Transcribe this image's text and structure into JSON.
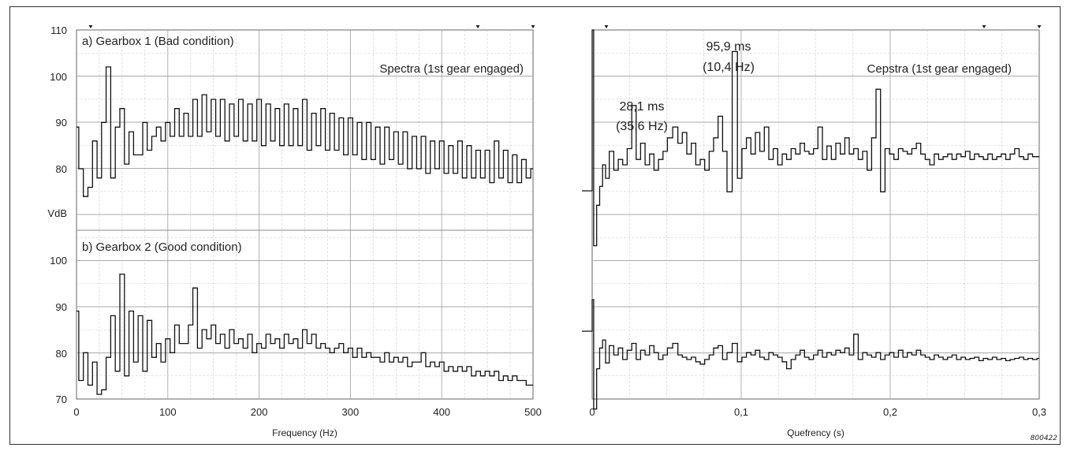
{
  "figure_id": "800422",
  "chart_data": [
    {
      "type": "line",
      "title": "Spectra (1st gear engaged)",
      "xlabel": "Frequency (Hz)",
      "ylabel": "VdB",
      "xlim": [
        0,
        500
      ],
      "x_ticks": [
        "0",
        "100",
        "200",
        "300",
        "400",
        "500"
      ],
      "grid": true,
      "panels": [
        {
          "label": "a) Gearbox 1 (Bad condition)",
          "ylim": [
            70,
            110
          ],
          "y_ticks": [
            "110",
            "100",
            "90",
            "80"
          ],
          "series": [
            {
              "x": [
                0,
                5,
                10,
                15,
                20,
                25,
                30,
                35,
                40,
                45,
                50,
                55,
                60,
                65,
                70,
                75,
                80,
                85,
                90,
                95,
                100,
                105,
                110,
                115,
                120,
                125,
                130,
                135,
                140,
                145,
                150,
                155,
                160,
                165,
                170,
                175,
                180,
                185,
                190,
                195,
                200,
                205,
                210,
                215,
                220,
                225,
                230,
                235,
                240,
                245,
                250,
                255,
                260,
                265,
                270,
                275,
                280,
                285,
                290,
                295,
                300,
                305,
                310,
                315,
                320,
                325,
                330,
                335,
                340,
                345,
                350,
                355,
                360,
                365,
                370,
                375,
                380,
                385,
                390,
                395,
                400,
                405,
                410,
                415,
                420,
                425,
                430,
                435,
                440,
                445,
                450,
                455,
                460,
                465,
                470,
                475,
                480,
                485,
                490,
                495,
                500
              ],
              "values": [
                89,
                80,
                74,
                76,
                86,
                78,
                90,
                102,
                78,
                89,
                93,
                81,
                88,
                83,
                83,
                90,
                84,
                87,
                89,
                86,
                90,
                87,
                93,
                87,
                92,
                87,
                95,
                87,
                96,
                88,
                95,
                87,
                95,
                86,
                94,
                87,
                95,
                86,
                94,
                86,
                95,
                85,
                94,
                86,
                93,
                85,
                94,
                85,
                93,
                85,
                95,
                84,
                92,
                85,
                93,
                84,
                92,
                84,
                91,
                83,
                91,
                83,
                90,
                82,
                90,
                82,
                89,
                81,
                89,
                82,
                88,
                81,
                88,
                80,
                87,
                80,
                87,
                79,
                86,
                80,
                86,
                79,
                85,
                79,
                86,
                78,
                85,
                78,
                84,
                78,
                84,
                77,
                86,
                78,
                84,
                77,
                83,
                77,
                82,
                78,
                80
              ]
            }
          ]
        },
        {
          "label": "b) Gearbox 2 (Good condition)",
          "ylim": [
            70,
            100
          ],
          "y_ticks": [
            "100",
            "90",
            "80",
            "70"
          ],
          "series": [
            {
              "x": [
                0,
                5,
                10,
                15,
                20,
                25,
                30,
                35,
                40,
                45,
                50,
                55,
                60,
                65,
                70,
                75,
                80,
                85,
                90,
                95,
                100,
                105,
                110,
                115,
                120,
                125,
                130,
                135,
                140,
                145,
                150,
                155,
                160,
                165,
                170,
                175,
                180,
                185,
                190,
                195,
                200,
                205,
                210,
                215,
                220,
                225,
                230,
                235,
                240,
                245,
                250,
                255,
                260,
                265,
                270,
                275,
                280,
                285,
                290,
                295,
                300,
                305,
                310,
                315,
                320,
                325,
                330,
                335,
                340,
                345,
                350,
                355,
                360,
                365,
                370,
                375,
                380,
                385,
                390,
                395,
                400,
                405,
                410,
                415,
                420,
                425,
                430,
                435,
                440,
                445,
                450,
                455,
                460,
                465,
                470,
                475,
                480,
                485,
                490,
                495,
                500
              ],
              "values": [
                89,
                74,
                80,
                73,
                78,
                71,
                72,
                79,
                88,
                76,
                97,
                75,
                89,
                78,
                88,
                76,
                87,
                79,
                82,
                78,
                83,
                80,
                86,
                82,
                82,
                86,
                94,
                81,
                85,
                83,
                86,
                82,
                84,
                81,
                85,
                82,
                83,
                81,
                84,
                80,
                82,
                81,
                84,
                82,
                83,
                81,
                84,
                82,
                83,
                81,
                85,
                82,
                84,
                81,
                82,
                81,
                80,
                81,
                82,
                80,
                81,
                79,
                81,
                79,
                80,
                79,
                79,
                78,
                80,
                78,
                79,
                78,
                79,
                77,
                78,
                78,
                80,
                77,
                78,
                77,
                78,
                76,
                77,
                76,
                77,
                76,
                77,
                75,
                76,
                75,
                76,
                75,
                76,
                74,
                75,
                74,
                75,
                74,
                74,
                73,
                73
              ]
            }
          ]
        }
      ]
    },
    {
      "type": "line",
      "title": "Cepstra (1st gear engaged)",
      "xlabel": "Quefrency (s)",
      "xlim": [
        0,
        0.3
      ],
      "x_ticks": [
        "0",
        "0,1",
        "0,2",
        "0,3"
      ],
      "grid": true,
      "annotations": [
        {
          "line1": "95,9 ms",
          "line2": "(10,4 Hz)",
          "x": 0.0959
        },
        {
          "line1": "28,1 ms",
          "line2": "(35,6 Hz)",
          "x": 0.0281
        }
      ],
      "panels": [
        {
          "label": "",
          "series": [
            {
              "x": [
                0,
                0.002,
                0.004,
                0.006,
                0.008,
                0.01,
                0.013,
                0.016,
                0.019,
                0.022,
                0.025,
                0.0281,
                0.031,
                0.034,
                0.037,
                0.04,
                0.043,
                0.046,
                0.049,
                0.052,
                0.056,
                0.059,
                0.062,
                0.065,
                0.068,
                0.071,
                0.074,
                0.077,
                0.08,
                0.083,
                0.086,
                0.089,
                0.092,
                0.0959,
                0.099,
                0.102,
                0.105,
                0.108,
                0.111,
                0.114,
                0.117,
                0.12,
                0.123,
                0.126,
                0.129,
                0.132,
                0.135,
                0.138,
                0.141,
                0.144,
                0.147,
                0.15,
                0.153,
                0.156,
                0.159,
                0.162,
                0.165,
                0.168,
                0.171,
                0.174,
                0.177,
                0.18,
                0.183,
                0.186,
                0.189,
                0.192,
                0.195,
                0.198,
                0.201,
                0.204,
                0.207,
                0.21,
                0.213,
                0.216,
                0.219,
                0.222,
                0.225,
                0.228,
                0.231,
                0.234,
                0.237,
                0.24,
                0.243,
                0.246,
                0.249,
                0.252,
                0.255,
                0.258,
                0.261,
                0.264,
                0.267,
                0.27,
                0.273,
                0.276,
                0.279,
                0.282,
                0.285,
                0.288,
                0.291,
                0.294,
                0.297,
                0.3
              ],
              "values": [
                100,
                20,
                35,
                42,
                50,
                45,
                55,
                48,
                52,
                50,
                56,
                72,
                52,
                58,
                50,
                54,
                48,
                52,
                55,
                60,
                64,
                58,
                62,
                54,
                58,
                50,
                52,
                48,
                55,
                60,
                68,
                55,
                40,
                92,
                45,
                56,
                60,
                54,
                62,
                55,
                64,
                52,
                56,
                50,
                54,
                52,
                56,
                54,
                58,
                55,
                54,
                56,
                64,
                52,
                57,
                52,
                58,
                54,
                60,
                54,
                56,
                52,
                55,
                48,
                60,
                78,
                40,
                56,
                54,
                52,
                56,
                55,
                54,
                56,
                58,
                54,
                52,
                50,
                54,
                52,
                53,
                54,
                52,
                54,
                53,
                55,
                52,
                54,
                53,
                52,
                54,
                52,
                53,
                54,
                52,
                54,
                56,
                53,
                52,
                54,
                53,
                53
              ]
            }
          ]
        },
        {
          "label": "",
          "series": [
            {
              "x": [
                0,
                0.002,
                0.004,
                0.006,
                0.008,
                0.01,
                0.013,
                0.016,
                0.019,
                0.022,
                0.025,
                0.0281,
                0.031,
                0.034,
                0.037,
                0.04,
                0.043,
                0.046,
                0.049,
                0.052,
                0.056,
                0.059,
                0.062,
                0.065,
                0.068,
                0.071,
                0.074,
                0.077,
                0.08,
                0.083,
                0.086,
                0.089,
                0.092,
                0.0959,
                0.099,
                0.102,
                0.105,
                0.108,
                0.111,
                0.114,
                0.117,
                0.12,
                0.123,
                0.126,
                0.129,
                0.132,
                0.135,
                0.138,
                0.141,
                0.144,
                0.147,
                0.15,
                0.153,
                0.156,
                0.159,
                0.162,
                0.165,
                0.168,
                0.171,
                0.174,
                0.177,
                0.18,
                0.183,
                0.186,
                0.189,
                0.192,
                0.195,
                0.198,
                0.201,
                0.204,
                0.207,
                0.21,
                0.213,
                0.216,
                0.219,
                0.222,
                0.225,
                0.228,
                0.231,
                0.234,
                0.237,
                0.24,
                0.243,
                0.246,
                0.249,
                0.252,
                0.255,
                0.258,
                0.261,
                0.264,
                0.267,
                0.27,
                0.273,
                0.276,
                0.279,
                0.282,
                0.285,
                0.288,
                0.291,
                0.294,
                0.297,
                0.3
              ],
              "values": [
                100,
                5,
                40,
                58,
                65,
                45,
                60,
                52,
                58,
                48,
                56,
                62,
                48,
                56,
                52,
                60,
                54,
                48,
                52,
                58,
                62,
                52,
                50,
                48,
                50,
                46,
                44,
                48,
                52,
                58,
                60,
                48,
                54,
                62,
                46,
                50,
                54,
                52,
                56,
                50,
                48,
                54,
                52,
                50,
                46,
                40,
                48,
                52,
                56,
                50,
                48,
                52,
                56,
                50,
                54,
                52,
                56,
                54,
                58,
                52,
                70,
                48,
                54,
                52,
                50,
                54,
                48,
                52,
                54,
                50,
                56,
                50,
                54,
                52,
                56,
                52,
                50,
                48,
                52,
                50,
                48,
                50,
                52,
                48,
                50,
                48,
                49,
                50,
                47,
                49,
                48,
                50,
                48,
                49,
                47,
                48,
                49,
                50,
                48,
                49,
                48,
                49
              ]
            }
          ]
        }
      ]
    }
  ]
}
